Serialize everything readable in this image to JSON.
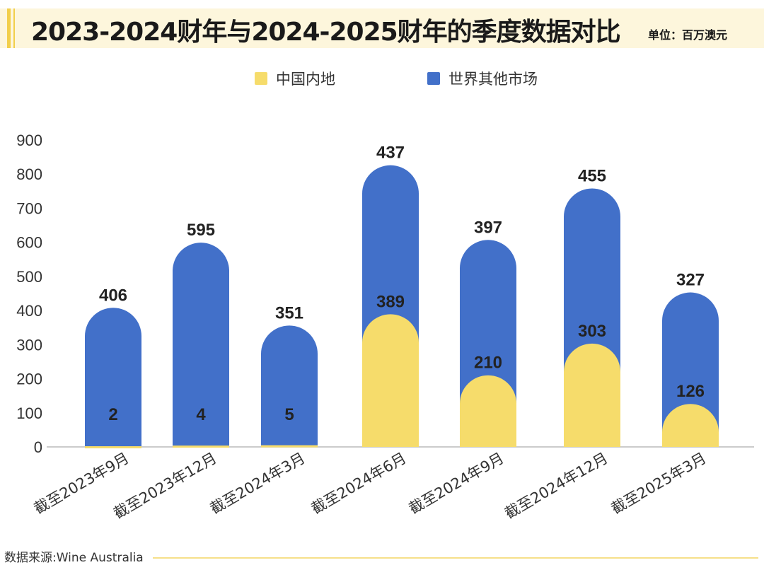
{
  "header": {
    "title": "2023-2024财年与2024-2025财年的季度数据对比",
    "unit": "单位：百万澳元"
  },
  "legend": [
    {
      "label": "中国内地",
      "color": "#f6dc6b"
    },
    {
      "label": "世界其他市场",
      "color": "#4270c9"
    }
  ],
  "source": "数据来源:Wine Australia",
  "chart_data": {
    "type": "bar",
    "stacked": true,
    "categories": [
      "截至2023年9月",
      "截至2023年12月",
      "截至2024年3月",
      "截至2024年6月",
      "截至2024年9月",
      "截至2024年12月",
      "截至2025年3月"
    ],
    "series": [
      {
        "name": "世界其他市场",
        "color": "#4270c9",
        "values": [
          406,
          595,
          351,
          437,
          397,
          455,
          327
        ]
      },
      {
        "name": "中国内地",
        "color": "#f6dc6b",
        "values": [
          2,
          4,
          5,
          389,
          210,
          303,
          126
        ]
      }
    ],
    "ylim": [
      0,
      900
    ],
    "yticks": [
      0,
      100,
      200,
      300,
      400,
      500,
      600,
      700,
      800,
      900
    ],
    "grid": false
  }
}
